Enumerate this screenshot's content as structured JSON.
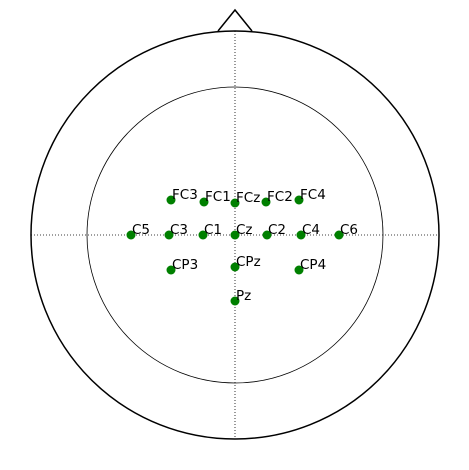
{
  "colors": {
    "background": "#ffffff",
    "outline": "#000000",
    "electrode": "#008000",
    "label": "#000000"
  },
  "electrodes": [
    {
      "label": "FC3"
    },
    {
      "label": "FC1"
    },
    {
      "label": "FCz"
    },
    {
      "label": "FC2"
    },
    {
      "label": "FC4"
    },
    {
      "label": "C5"
    },
    {
      "label": "C3"
    },
    {
      "label": "C1"
    },
    {
      "label": "Cz"
    },
    {
      "label": "C2"
    },
    {
      "label": "C4"
    },
    {
      "label": "C6"
    },
    {
      "label": "CP3"
    },
    {
      "label": "CPz"
    },
    {
      "label": "CP4"
    },
    {
      "label": "Pz"
    }
  ]
}
